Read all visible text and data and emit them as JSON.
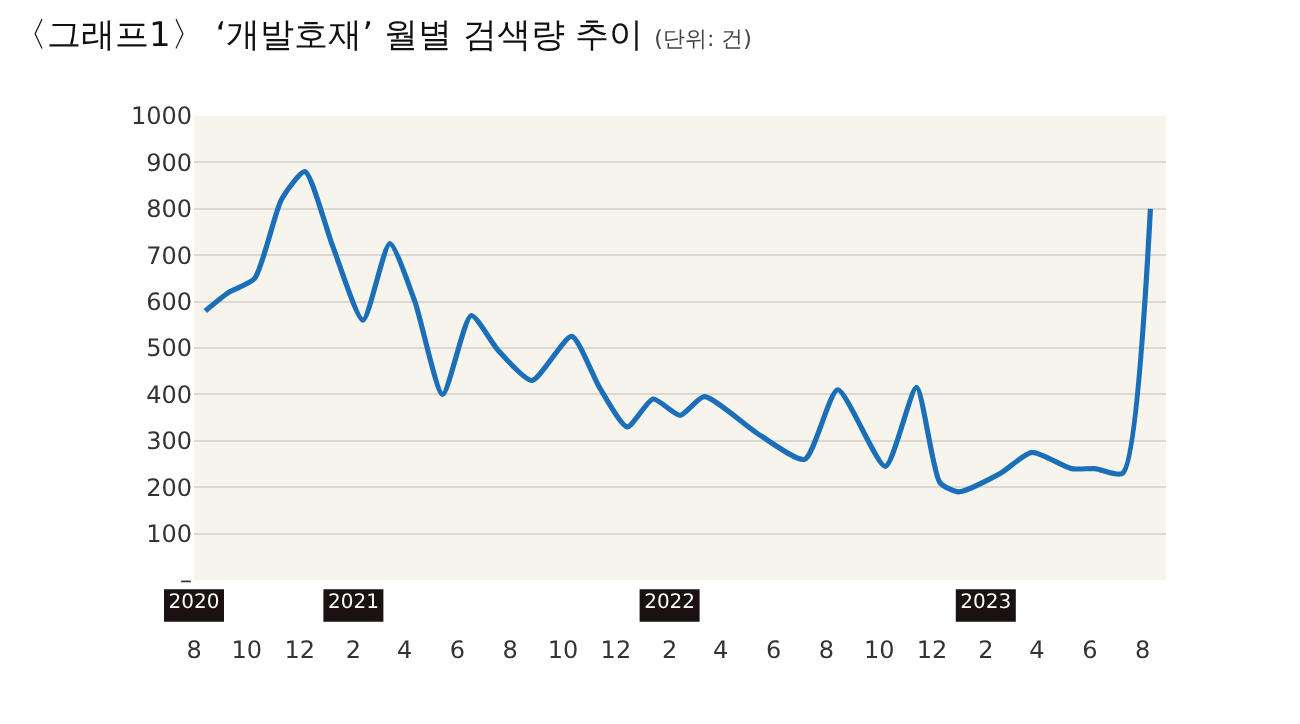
{
  "chart_data": {
    "type": "line",
    "title": "〈그래프1〉 ‘개발호재’ 월별 검색량 추이",
    "subtitle": "(단위: 건)",
    "x": [
      "2020-08-14",
      "2020-09-10",
      "2020-10-10",
      "2020-11-10",
      "2020-12-07",
      "2021-01-08",
      "2021-02-12",
      "2021-03-15",
      "2021-04-13",
      "2021-05-15",
      "2021-06-17",
      "2021-07-18",
      "2021-08-26",
      "2021-10-11",
      "2021-11-12",
      "2021-12-14",
      "2022-01-13",
      "2022-02-13",
      "2022-03-13",
      "2022-05-14",
      "2022-07-07",
      "2022-08-14",
      "2022-10-08",
      "2022-11-13",
      "2022-12-10",
      "2023-01-01",
      "2023-02-18",
      "2023-03-26",
      "2023-05-11",
      "2023-06-07",
      "2023-07-09",
      "2023-08-10"
    ],
    "series": [
      {
        "color": "#1a6fb8",
        "values": [
          580,
          620,
          650,
          820,
          880,
          720,
          560,
          725,
          600,
          400,
          570,
          495,
          430,
          525,
          415,
          330,
          390,
          355,
          395,
          315,
          260,
          410,
          245,
          415,
          210,
          190,
          230,
          275,
          240,
          240,
          230,
          800
        ]
      }
    ],
    "xlim": [
      "2020-08-01",
      "2023-08-28"
    ],
    "x2lim": [
      "2020-08-01",
      "2023-08-28"
    ],
    "x2ticks": [
      {
        "value": "2020-08-01",
        "label": "2020"
      },
      {
        "value": "2021-02-01",
        "label": "2021"
      },
      {
        "value": "2022-02-01",
        "label": "2022"
      },
      {
        "value": "2023-02-01",
        "label": "2023"
      }
    ],
    "xticks": [
      {
        "value": "2020-08-01",
        "label": "8"
      },
      {
        "value": "2020-10-01",
        "label": "10"
      },
      {
        "value": "2020-12-01",
        "label": "12"
      },
      {
        "value": "2021-02-01",
        "label": "2"
      },
      {
        "value": "2021-04-01",
        "label": "4"
      },
      {
        "value": "2021-06-01",
        "label": "6"
      },
      {
        "value": "2021-08-01",
        "label": "8"
      },
      {
        "value": "2021-10-01",
        "label": "10"
      },
      {
        "value": "2021-12-01",
        "label": "12"
      },
      {
        "value": "2022-02-01",
        "label": "2"
      },
      {
        "value": "2022-04-01",
        "label": "4"
      },
      {
        "value": "2022-06-01",
        "label": "6"
      },
      {
        "value": "2022-08-01",
        "label": "8"
      },
      {
        "value": "2022-10-01",
        "label": "10"
      },
      {
        "value": "2022-12-01",
        "label": "12"
      },
      {
        "value": "2023-02-01",
        "label": "2"
      },
      {
        "value": "2023-04-01",
        "label": "4"
      },
      {
        "value": "2023-06-01",
        "label": "6"
      },
      {
        "value": "2023-08-01",
        "label": "8"
      }
    ],
    "ylim": [
      0,
      1000
    ],
    "yticks": [
      {
        "value": 0,
        "label": "–"
      },
      100,
      200,
      300,
      400,
      500,
      600,
      700,
      800,
      900,
      1000
    ],
    "grid": "y",
    "marker": "none",
    "line_style": "solid",
    "legend": false
  }
}
